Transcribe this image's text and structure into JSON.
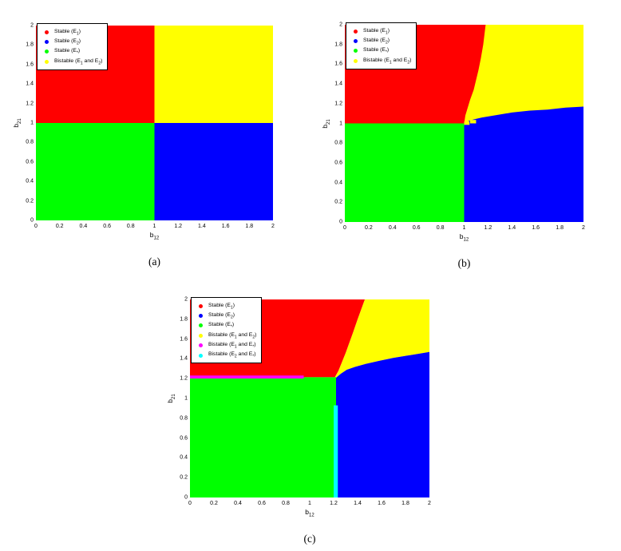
{
  "colors": {
    "red": "#ff0000",
    "blue": "#0000ff",
    "green": "#00ff00",
    "yellow": "#ffff00",
    "magenta": "#ff00ff",
    "cyan": "#00ffff",
    "legend_border": "#000000",
    "legend_bg": "#ffffff",
    "text": "#000000"
  },
  "chart_data": [
    {
      "type": "heatmap",
      "subtype": "stability-region-map",
      "caption": "(a)",
      "xlabel": "b_12",
      "ylabel": "b_21",
      "xlim": [
        0,
        2
      ],
      "ylim": [
        0,
        2
      ],
      "xticks": [
        "0",
        "0.2",
        "0.4",
        "0.6",
        "0.8",
        "1",
        "1.2",
        "1.4",
        "1.6",
        "1.8",
        "2"
      ],
      "yticks": [
        "0",
        "0.2",
        "0.4",
        "0.6",
        "0.8",
        "1",
        "1.2",
        "1.4",
        "1.6",
        "1.8",
        "2"
      ],
      "legend_position": "top-left-inside",
      "legend": [
        {
          "color": "red",
          "label": "Stable (E_1)"
        },
        {
          "color": "blue",
          "label": "Stable (E_2)"
        },
        {
          "color": "green",
          "label": "Stable (E_*)"
        },
        {
          "color": "yellow",
          "label": "Bistable (E_1 and E_2)"
        }
      ],
      "regions": [
        {
          "name": "stable-e1-region",
          "color": "red",
          "points": [
            [
              0,
              1
            ],
            [
              1,
              1
            ],
            [
              1,
              2
            ],
            [
              0,
              2
            ]
          ]
        },
        {
          "name": "bistable-e1-e2-region",
          "color": "yellow",
          "points": [
            [
              1,
              1
            ],
            [
              2,
              1
            ],
            [
              2,
              2
            ],
            [
              1,
              2
            ]
          ]
        },
        {
          "name": "stable-estar-region",
          "color": "green",
          "points": [
            [
              0,
              0
            ],
            [
              1,
              0
            ],
            [
              1,
              1
            ],
            [
              0,
              1
            ]
          ]
        },
        {
          "name": "stable-e2-region",
          "color": "blue",
          "points": [
            [
              1,
              0
            ],
            [
              2,
              0
            ],
            [
              2,
              1
            ],
            [
              1,
              1
            ]
          ]
        }
      ]
    },
    {
      "type": "heatmap",
      "subtype": "stability-region-map",
      "caption": "(b)",
      "xlabel": "b_12",
      "ylabel": "b_21",
      "xlim": [
        0,
        2
      ],
      "ylim": [
        0,
        2
      ],
      "xticks": [
        "0",
        "0.2",
        "0.4",
        "0.6",
        "0.8",
        "1",
        "1.2",
        "1.4",
        "1.6",
        "1.8",
        "2"
      ],
      "yticks": [
        "0",
        "0.2",
        "0.4",
        "0.6",
        "0.8",
        "1",
        "1.2",
        "1.4",
        "1.6",
        "1.8",
        "2"
      ],
      "legend_position": "top-left-inside",
      "legend": [
        {
          "color": "red",
          "label": "Stable (E_1)"
        },
        {
          "color": "blue",
          "label": "Stable (E_2)"
        },
        {
          "color": "green",
          "label": "Stable (E_*)"
        },
        {
          "color": "yellow",
          "label": "Bistable (E_1 and E_2)"
        }
      ],
      "regions": [
        {
          "name": "bistable-e1-e2-region",
          "color": "yellow",
          "points": [
            [
              1,
              1
            ],
            [
              2,
              1
            ],
            [
              2,
              2
            ],
            [
              1,
              2
            ]
          ]
        },
        {
          "name": "stable-e1-region",
          "color": "red",
          "points": [
            [
              0,
              1
            ],
            [
              1,
              1
            ],
            [
              1.01,
              1.08
            ],
            [
              1.03,
              1.16
            ],
            [
              1.05,
              1.24
            ],
            [
              1.08,
              1.34
            ],
            [
              1.1,
              1.44
            ],
            [
              1.12,
              1.54
            ],
            [
              1.14,
              1.66
            ],
            [
              1.16,
              1.8
            ],
            [
              1.17,
              1.9
            ],
            [
              1.18,
              2
            ],
            [
              0,
              2
            ]
          ]
        },
        {
          "name": "stable-e2-region",
          "color": "blue",
          "points": [
            [
              1,
              0
            ],
            [
              2,
              0
            ],
            [
              2,
              1.17
            ],
            [
              1.85,
              1.16
            ],
            [
              1.7,
              1.14
            ],
            [
              1.55,
              1.13
            ],
            [
              1.4,
              1.11
            ],
            [
              1.25,
              1.08
            ],
            [
              1.15,
              1.06
            ],
            [
              1.08,
              1.04
            ],
            [
              1.03,
              1.02
            ],
            [
              1,
              1
            ]
          ]
        },
        {
          "name": "stable-estar-region",
          "color": "green",
          "points": [
            [
              0,
              0
            ],
            [
              1,
              0
            ],
            [
              1,
              1
            ],
            [
              0,
              1
            ]
          ]
        },
        {
          "name": "bistable-speckle",
          "color": "yellow",
          "points": [
            [
              1.0,
              0.985
            ],
            [
              1.045,
              0.985
            ],
            [
              1.045,
              1.02
            ],
            [
              1.0,
              1.02
            ]
          ]
        },
        {
          "name": "bistable-speckle",
          "color": "yellow",
          "points": [
            [
              1.05,
              1.0
            ],
            [
              1.1,
              1.0
            ],
            [
              1.1,
              1.035
            ],
            [
              1.05,
              1.035
            ]
          ]
        }
      ]
    },
    {
      "type": "heatmap",
      "subtype": "stability-region-map",
      "caption": "(c)",
      "xlabel": "b_12",
      "ylabel": "b_21",
      "xlim": [
        0,
        2
      ],
      "ylim": [
        0,
        2
      ],
      "xticks": [
        "0",
        "0.2",
        "0.4",
        "0.6",
        "0.8",
        "1",
        "1.2",
        "1.4",
        "1.6",
        "1.8",
        "2"
      ],
      "yticks": [
        "0",
        "0.2",
        "0.4",
        "0.6",
        "0.8",
        "1",
        "1.2",
        "1.4",
        "1.6",
        "1.8",
        "2"
      ],
      "legend_position": "top-left-inside",
      "legend": [
        {
          "color": "red",
          "label": "Stable (E_1)"
        },
        {
          "color": "blue",
          "label": "Stable (E_2)"
        },
        {
          "color": "green",
          "label": "Stable (E_*)"
        },
        {
          "color": "yellow",
          "label": "Bistable (E_1 and E_2)"
        },
        {
          "color": "magenta",
          "label": "Bistable (E_1 and E_*)"
        },
        {
          "color": "cyan",
          "label": "Bistable (E_2 and E_*)"
        }
      ],
      "regions": [
        {
          "name": "bistable-e1-e2-region",
          "color": "yellow",
          "points": [
            [
              1.21,
              1.215
            ],
            [
              1.24,
              1.28
            ],
            [
              1.27,
              1.37
            ],
            [
              1.3,
              1.46
            ],
            [
              1.33,
              1.56
            ],
            [
              1.36,
              1.66
            ],
            [
              1.4,
              1.8
            ],
            [
              1.43,
              1.9
            ],
            [
              1.46,
              2
            ],
            [
              2,
              2
            ],
            [
              2,
              1.47
            ],
            [
              1.85,
              1.44
            ],
            [
              1.7,
              1.41
            ],
            [
              1.58,
              1.38
            ],
            [
              1.47,
              1.35
            ],
            [
              1.38,
              1.32
            ],
            [
              1.31,
              1.29
            ],
            [
              1.26,
              1.25
            ],
            [
              1.22,
              1.21
            ]
          ]
        },
        {
          "name": "stable-e1-region",
          "color": "red",
          "points": [
            [
              0,
              1.215
            ],
            [
              1.21,
              1.215
            ],
            [
              1.24,
              1.28
            ],
            [
              1.27,
              1.37
            ],
            [
              1.3,
              1.46
            ],
            [
              1.33,
              1.56
            ],
            [
              1.36,
              1.66
            ],
            [
              1.4,
              1.8
            ],
            [
              1.43,
              1.9
            ],
            [
              1.46,
              2
            ],
            [
              0,
              2
            ]
          ]
        },
        {
          "name": "stable-e2-region",
          "color": "blue",
          "points": [
            [
              1.22,
              0
            ],
            [
              2,
              0
            ],
            [
              2,
              1.47
            ],
            [
              1.85,
              1.44
            ],
            [
              1.7,
              1.41
            ],
            [
              1.58,
              1.38
            ],
            [
              1.47,
              1.35
            ],
            [
              1.38,
              1.32
            ],
            [
              1.31,
              1.29
            ],
            [
              1.26,
              1.25
            ],
            [
              1.22,
              1.21
            ]
          ]
        },
        {
          "name": "stable-estar-region",
          "color": "green",
          "points": [
            [
              0,
              0
            ],
            [
              1.22,
              0
            ],
            [
              1.22,
              1.215
            ],
            [
              0,
              1.215
            ]
          ]
        },
        {
          "name": "bistable-e2-estar-strip",
          "color": "cyan",
          "points": [
            [
              1.2,
              0
            ],
            [
              1.235,
              0
            ],
            [
              1.235,
              0.93
            ],
            [
              1.2,
              0.93
            ]
          ]
        },
        {
          "name": "bistable-e1-estar-strip",
          "color": "magenta",
          "points": [
            [
              0,
              1.202
            ],
            [
              0.95,
              1.202
            ],
            [
              0.95,
              1.232
            ],
            [
              0,
              1.232
            ]
          ]
        }
      ]
    }
  ]
}
